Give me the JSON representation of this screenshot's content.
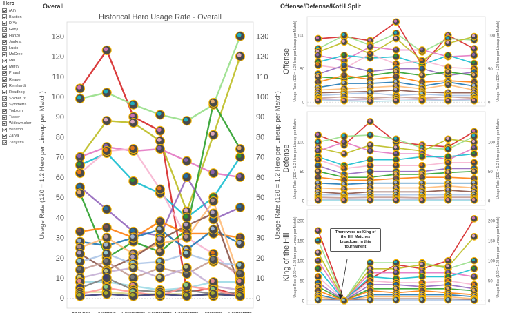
{
  "legend": {
    "title": "Hero",
    "items": [
      "(All)",
      "Bastion",
      "D.Va",
      "Genji",
      "Hanzo",
      "Junkrat",
      "Lucio",
      "McCree",
      "Mei",
      "Mercy",
      "Pharah",
      "Reaper",
      "Reinhardt",
      "Roadhog",
      "Soldier 76",
      "Symmetra",
      "Torbjorn",
      "Tracer",
      "Widowmaker",
      "Winston",
      "Zarya",
      "Zenyatta"
    ]
  },
  "overall": {
    "section_title": "Overall"
  },
  "split": {
    "section_title": "Offense/Defense/KotH Split"
  },
  "annotation": "There were no King of the Hill Matches broadcast in this tournament",
  "chart_data": [
    {
      "type": "line",
      "title": "Historical Hero Usage Rate - Overall",
      "ylabel": "Usage Rate (120 = 1.2 Hero per Lineup per Match)",
      "ylim": [
        -5,
        137
      ],
      "yticks": [
        0,
        10,
        20,
        30,
        40,
        50,
        60,
        70,
        80,
        90,
        100,
        110,
        120,
        130
      ],
      "categories": [
        "End of Beta",
        "Alienware",
        "Gosugamers",
        "Gosugamers",
        "Gosugamers",
        "Alienware",
        "Gosugamers"
      ],
      "series_values": [
        [
          104,
          123,
          90,
          83,
          3,
          5,
          1
        ],
        [
          99,
          102,
          96,
          91,
          88,
          96,
          130
        ],
        [
          70,
          88,
          87,
          78,
          43,
          81,
          120
        ],
        [
          70,
          75,
          73,
          74,
          68,
          62,
          60
        ],
        [
          66,
          72,
          58,
          52,
          40,
          50,
          70
        ],
        [
          62,
          73,
          74,
          54,
          30,
          22,
          10
        ],
        [
          55,
          44,
          33,
          31,
          60,
          39,
          45
        ],
        [
          52,
          20,
          28,
          23,
          34,
          97,
          74
        ],
        [
          33,
          35,
          30,
          38,
          32,
          32,
          30
        ],
        [
          28,
          26,
          30,
          34,
          24,
          34,
          27
        ],
        [
          25,
          30,
          22,
          27,
          30,
          48,
          9
        ],
        [
          22,
          14,
          20,
          29,
          36,
          42,
          5
        ],
        [
          18,
          22,
          17,
          18,
          22,
          18,
          16
        ],
        [
          14,
          18,
          10,
          15,
          12,
          19,
          12
        ],
        [
          10,
          13,
          15,
          10,
          15,
          6,
          4
        ],
        [
          8,
          8,
          6,
          4,
          5,
          8,
          8
        ],
        [
          5,
          10,
          4,
          3,
          4,
          2,
          3
        ],
        [
          3,
          3,
          2,
          2,
          2,
          1,
          2
        ],
        [
          2,
          5,
          3,
          1,
          6,
          4,
          1
        ],
        [
          1,
          2,
          1,
          2,
          1,
          2,
          1
        ]
      ]
    },
    {
      "type": "line",
      "title": "Offense",
      "ylabel": "Usage Rate (120 = 1.2 Hero per Lineup per Match)",
      "ylim": [
        -6,
        128
      ],
      "yticks": [
        0,
        50,
        100
      ],
      "series_values": [
        [
          95,
          98,
          92,
          120,
          55,
          100,
          80
        ],
        [
          80,
          100,
          85,
          103,
          75,
          95,
          93
        ],
        [
          75,
          90,
          72,
          95,
          62,
          88,
          98
        ],
        [
          70,
          62,
          83,
          78,
          78,
          68,
          70
        ],
        [
          60,
          70,
          66,
          68,
          56,
          70,
          58
        ],
        [
          55,
          50,
          72,
          57,
          62,
          52,
          50
        ],
        [
          42,
          55,
          46,
          50,
          50,
          40,
          45
        ],
        [
          38,
          35,
          40,
          45,
          40,
          45,
          40
        ],
        [
          30,
          40,
          34,
          38,
          30,
          32,
          30
        ],
        [
          22,
          28,
          28,
          30,
          24,
          30,
          24
        ],
        [
          18,
          20,
          22,
          24,
          20,
          26,
          18
        ],
        [
          14,
          15,
          16,
          18,
          15,
          14,
          14
        ],
        [
          10,
          12,
          14,
          10,
          12,
          10,
          10
        ],
        [
          6,
          8,
          6,
          8,
          6,
          8,
          6
        ],
        [
          4,
          3,
          4,
          5,
          4,
          3,
          4
        ],
        [
          2,
          2,
          1,
          2,
          2,
          2,
          2
        ]
      ]
    },
    {
      "type": "line",
      "title": "Defense",
      "ylabel": "Usage Rate (120 = 1.2 Hero per Lineup per Match)",
      "ylim": [
        -8,
        152
      ],
      "yticks": [
        0,
        50,
        100
      ],
      "series_values": [
        [
          112,
          95,
          135,
          100,
          95,
          92,
          118
        ],
        [
          100,
          110,
          112,
          105,
          90,
          88,
          110
        ],
        [
          90,
          80,
          95,
          90,
          85,
          105,
          100
        ],
        [
          85,
          100,
          85,
          80,
          80,
          70,
          90
        ],
        [
          75,
          60,
          70,
          70,
          75,
          75,
          80
        ],
        [
          70,
          55,
          60,
          60,
          60,
          65,
          65
        ],
        [
          60,
          45,
          50,
          50,
          50,
          55,
          55
        ],
        [
          50,
          40,
          40,
          45,
          45,
          48,
          50
        ],
        [
          40,
          35,
          35,
          38,
          40,
          40,
          38
        ],
        [
          30,
          28,
          30,
          30,
          30,
          30,
          30
        ],
        [
          22,
          20,
          22,
          22,
          22,
          25,
          22
        ],
        [
          15,
          12,
          15,
          15,
          15,
          18,
          15
        ],
        [
          10,
          10,
          10,
          10,
          10,
          10,
          10
        ],
        [
          6,
          5,
          6,
          6,
          5,
          6,
          6
        ],
        [
          3,
          3,
          3,
          3,
          3,
          3,
          3
        ],
        [
          1,
          1,
          1,
          1,
          1,
          1,
          1
        ]
      ]
    },
    {
      "type": "line",
      "title": "King of the Hill",
      "ylabel": "Usage Rate (120 = 1.2 Hero per Lineup per Match)",
      "ylim": [
        -10,
        228
      ],
      "yticks": [
        0,
        50,
        100,
        150,
        200
      ],
      "series_values": [
        [
          175,
          0,
          55,
          90,
          80,
          100,
          205
        ],
        [
          150,
          0,
          95,
          95,
          95,
          80,
          100
        ],
        [
          120,
          0,
          80,
          80,
          90,
          85,
          160
        ],
        [
          100,
          0,
          70,
          70,
          70,
          70,
          60
        ],
        [
          80,
          0,
          60,
          55,
          60,
          60,
          80
        ],
        [
          60,
          0,
          50,
          45,
          45,
          50,
          40
        ],
        [
          45,
          0,
          40,
          40,
          35,
          40,
          30
        ],
        [
          35,
          0,
          30,
          30,
          30,
          30,
          25
        ],
        [
          25,
          0,
          25,
          20,
          25,
          20,
          15
        ],
        [
          15,
          0,
          15,
          15,
          15,
          15,
          10
        ],
        [
          10,
          0,
          10,
          10,
          10,
          10,
          5
        ],
        [
          5,
          0,
          5,
          5,
          5,
          5,
          3
        ],
        [
          2,
          0,
          2,
          2,
          2,
          2,
          1
        ]
      ]
    }
  ],
  "colors": [
    "#d62728",
    "#98df8a",
    "#bcbd22",
    "#e377c2",
    "#17becf",
    "#f7b6d2",
    "#9467bd",
    "#2ca02c",
    "#ff7f0e",
    "#1f77b4",
    "#ffbb78",
    "#8c564b",
    "#aec7e8",
    "#c49c94",
    "#c5b0d5",
    "#9edae5",
    "#7f7f7f",
    "#dbdb8d",
    "#ff9896",
    "#393b79"
  ]
}
